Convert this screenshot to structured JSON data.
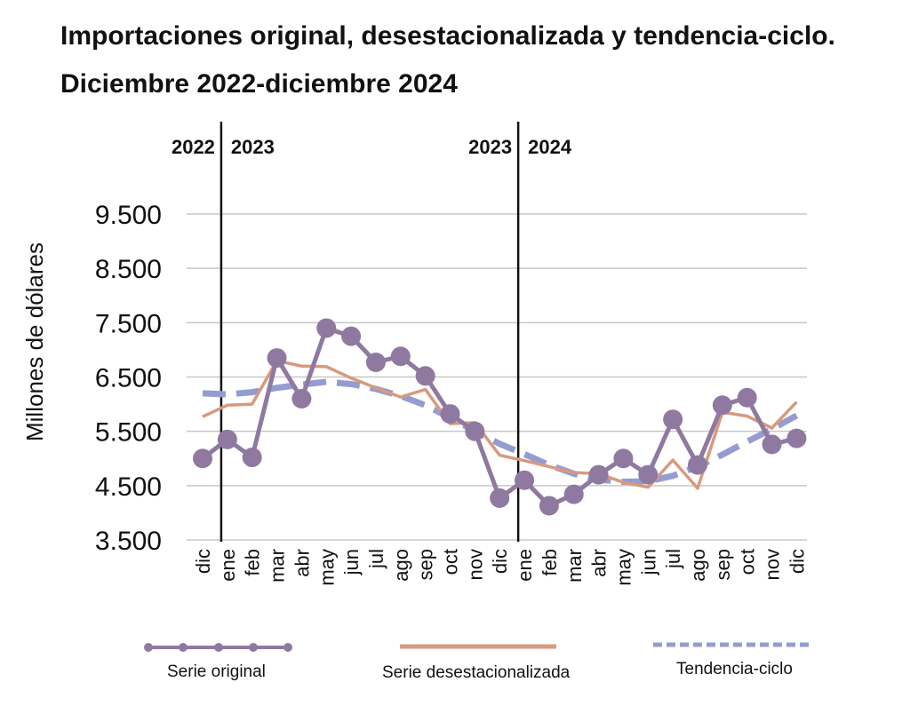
{
  "title": "Importaciones original, desestacionalizada y tendencia-ciclo. Diciembre 2022-diciembre 2024",
  "chart_data": {
    "type": "line",
    "title": "Importaciones original, desestacionalizada y tendencia-ciclo. Diciembre 2022-diciembre 2024",
    "xlabel": "",
    "ylabel": "Millones de dólares",
    "ylim": [
      3500,
      9500
    ],
    "yticks": [
      3500,
      4500,
      5500,
      6500,
      7500,
      8500,
      9500
    ],
    "ytick_labels": [
      "3.500",
      "4.500",
      "5.500",
      "6.500",
      "7.500",
      "8.500",
      "9.500"
    ],
    "grid": true,
    "legend_position": "bottom",
    "categories": [
      "dic",
      "ene",
      "feb",
      "mar",
      "abr",
      "may",
      "jun",
      "jul",
      "ago",
      "sep",
      "oct",
      "nov",
      "dic",
      "ene",
      "feb",
      "mar",
      "abr",
      "may",
      "jun",
      "jul",
      "ago",
      "sep",
      "oct",
      "nov",
      "dic"
    ],
    "year_markers": [
      {
        "label": "2022",
        "side": "left",
        "at_index": 0.5
      },
      {
        "label": "2023",
        "side": "right",
        "at_index": 0.5
      },
      {
        "label": "2023",
        "side": "left",
        "at_index": 12.5
      },
      {
        "label": "2024",
        "side": "right",
        "at_index": 12.5
      }
    ],
    "series": [
      {
        "name": "Serie original",
        "style": "line-markers",
        "color": "#8f79a0",
        "values": [
          5000,
          5350,
          5020,
          6850,
          6100,
          7400,
          7250,
          6770,
          6880,
          6520,
          5820,
          5500,
          4270,
          4600,
          4130,
          4340,
          4700,
          5000,
          4700,
          5720,
          4880,
          5980,
          6120,
          5260,
          5370
        ]
      },
      {
        "name": "Serie desestacionalizada",
        "style": "line",
        "color": "#d79a7e",
        "values": [
          5770,
          5980,
          6000,
          6800,
          6700,
          6690,
          6480,
          6300,
          6130,
          6270,
          5640,
          5660,
          5060,
          4960,
          4850,
          4740,
          4720,
          4560,
          4470,
          4970,
          4450,
          5850,
          5780,
          5560,
          6040
        ]
      },
      {
        "name": "Tendencia-ciclo",
        "style": "dashed",
        "color": "#949cd0",
        "values": [
          6200,
          6180,
          6220,
          6300,
          6360,
          6410,
          6370,
          6280,
          6150,
          5980,
          5750,
          5500,
          5270,
          5080,
          4880,
          4720,
          4610,
          4570,
          4580,
          4680,
          4850,
          5070,
          5310,
          5540,
          5790
        ]
      }
    ]
  },
  "legend": {
    "original": "Serie original",
    "seasonal": "Serie desestacionalizada",
    "trend": "Tendencia-ciclo"
  },
  "colors": {
    "original": "#8f79a0",
    "seasonal": "#d79a7e",
    "trend": "#949cd0",
    "grid": "#c8c8c8",
    "axis": "#111111"
  }
}
